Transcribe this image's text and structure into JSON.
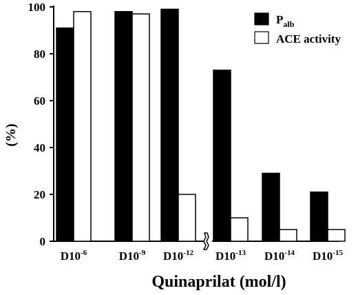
{
  "chart_data": {
    "type": "bar",
    "categories": [
      {
        "base": "D10",
        "exp": "-6"
      },
      {
        "base": "D10",
        "exp": "-9"
      },
      {
        "base": "D10",
        "exp": "-12"
      },
      {
        "base": "D10",
        "exp": "-13"
      },
      {
        "base": "D10",
        "exp": "-14"
      },
      {
        "base": "D10",
        "exp": "-15"
      }
    ],
    "series": [
      {
        "name_main": "P",
        "name_sub": "alb",
        "color": "#000000",
        "values": [
          91,
          98,
          99,
          73,
          29,
          21
        ]
      },
      {
        "name": "ACE activity",
        "color": "#ffffff",
        "values": [
          98,
          97,
          20,
          10,
          5,
          5
        ]
      }
    ],
    "xlabel": "Quinaprilat (mol/l)",
    "ylabel": "(%)",
    "ylim": [
      0,
      100
    ],
    "yticks": [
      0,
      20,
      40,
      60,
      80,
      100
    ],
    "axis_break": "between D10-12 and D10-13",
    "grid": false,
    "legend": "top-right"
  }
}
